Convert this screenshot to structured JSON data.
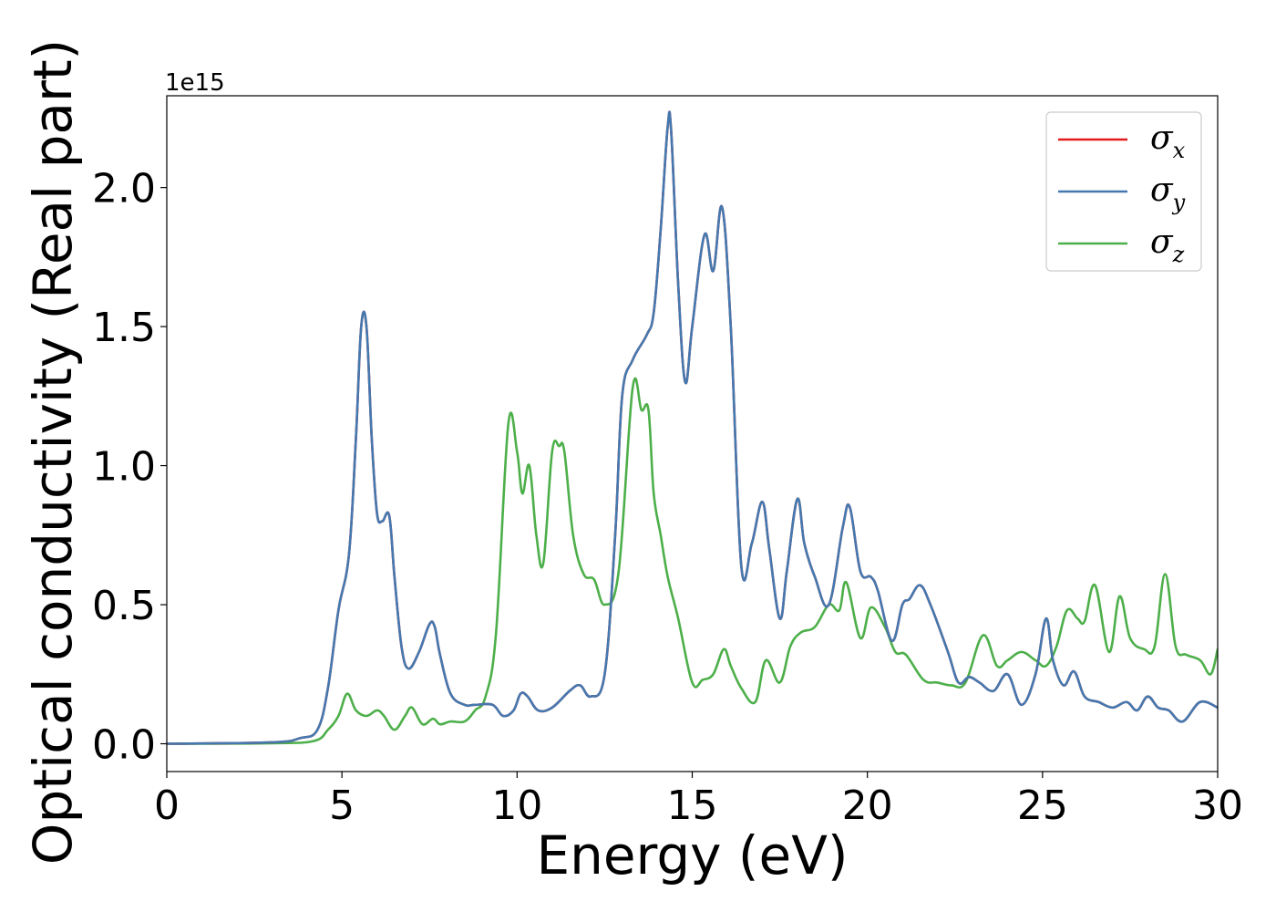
{
  "chart_data": {
    "type": "line",
    "xlabel": "Energy (eV)",
    "ylabel": "Optical conductivity (Real part)",
    "y_offset_text": "1e15",
    "xlim": [
      0,
      30
    ],
    "ylim": [
      -0.1,
      2.33
    ],
    "y_scale_factor": 1000000000000000.0,
    "xticks": [
      0,
      5,
      10,
      15,
      20,
      25,
      30
    ],
    "xtick_labels": [
      "0",
      "5",
      "10",
      "15",
      "20",
      "25",
      "30"
    ],
    "yticks": [
      0.0,
      0.5,
      1.0,
      1.5,
      2.0
    ],
    "ytick_labels": [
      "0.0",
      "0.5",
      "1.0",
      "1.5",
      "2.0"
    ],
    "grid": false,
    "legend_position": "top-right",
    "series": [
      {
        "name": "σx",
        "symbol": "σ",
        "subscript": "x",
        "color": "#e41a1c",
        "x": [
          0,
          3,
          3.8,
          4.3,
          4.6,
          4.9,
          5.2,
          5.4,
          5.55,
          5.7,
          5.85,
          6.0,
          6.15,
          6.35,
          6.5,
          6.7,
          6.9,
          7.2,
          7.5,
          7.65,
          7.8,
          8.1,
          8.5,
          8.8,
          9.3,
          9.6,
          9.9,
          10.1,
          10.3,
          10.6,
          11.0,
          11.5,
          11.8,
          12.1,
          12.5,
          12.8,
          13.0,
          13.3,
          13.7,
          13.9,
          14.1,
          14.3,
          14.4,
          14.6,
          14.8,
          15.0,
          15.35,
          15.6,
          15.85,
          16.1,
          16.4,
          16.7,
          17.0,
          17.2,
          17.5,
          17.7,
          18.0,
          18.2,
          18.5,
          18.9,
          19.3,
          19.5,
          19.8,
          20.1,
          20.3,
          20.7,
          21.0,
          21.2,
          21.5,
          21.8,
          22.3,
          22.6,
          22.9,
          23.2,
          23.6,
          24.0,
          24.4,
          24.8,
          25.1,
          25.3,
          25.6,
          25.9,
          26.2,
          26.6,
          27.0,
          27.4,
          27.7,
          28.0,
          28.3,
          28.6,
          29.0,
          29.5,
          30.0
        ],
        "y": [
          0.0,
          0.005,
          0.02,
          0.05,
          0.2,
          0.48,
          0.68,
          1.1,
          1.5,
          1.5,
          1.1,
          0.83,
          0.8,
          0.82,
          0.6,
          0.35,
          0.27,
          0.33,
          0.43,
          0.42,
          0.32,
          0.18,
          0.14,
          0.14,
          0.14,
          0.1,
          0.12,
          0.18,
          0.17,
          0.12,
          0.13,
          0.19,
          0.21,
          0.17,
          0.25,
          0.75,
          1.25,
          1.38,
          1.47,
          1.55,
          1.85,
          2.22,
          2.2,
          1.65,
          1.3,
          1.5,
          1.83,
          1.7,
          1.93,
          1.5,
          0.64,
          0.72,
          0.87,
          0.7,
          0.45,
          0.62,
          0.88,
          0.72,
          0.6,
          0.5,
          0.78,
          0.85,
          0.62,
          0.6,
          0.55,
          0.37,
          0.5,
          0.52,
          0.57,
          0.5,
          0.33,
          0.22,
          0.24,
          0.22,
          0.19,
          0.25,
          0.14,
          0.25,
          0.45,
          0.3,
          0.21,
          0.26,
          0.17,
          0.15,
          0.13,
          0.15,
          0.12,
          0.17,
          0.13,
          0.12,
          0.08,
          0.15,
          0.13
        ]
      },
      {
        "name": "σy",
        "symbol": "σ",
        "subscript": "y",
        "color": "#4479b0",
        "x": [
          0,
          3,
          3.8,
          4.3,
          4.6,
          4.9,
          5.2,
          5.4,
          5.55,
          5.7,
          5.85,
          6.0,
          6.15,
          6.35,
          6.5,
          6.7,
          6.9,
          7.2,
          7.5,
          7.65,
          7.8,
          8.1,
          8.5,
          8.8,
          9.3,
          9.6,
          9.9,
          10.1,
          10.3,
          10.6,
          11.0,
          11.5,
          11.8,
          12.1,
          12.5,
          12.8,
          13.0,
          13.3,
          13.7,
          13.9,
          14.1,
          14.3,
          14.4,
          14.6,
          14.8,
          15.0,
          15.35,
          15.6,
          15.85,
          16.1,
          16.4,
          16.7,
          17.0,
          17.2,
          17.5,
          17.7,
          18.0,
          18.2,
          18.5,
          18.9,
          19.3,
          19.5,
          19.8,
          20.1,
          20.3,
          20.7,
          21.0,
          21.2,
          21.5,
          21.8,
          22.3,
          22.6,
          22.9,
          23.2,
          23.6,
          24.0,
          24.4,
          24.8,
          25.1,
          25.3,
          25.6,
          25.9,
          26.2,
          26.6,
          27.0,
          27.4,
          27.7,
          28.0,
          28.3,
          28.6,
          29.0,
          29.5,
          30.0
        ],
        "y": [
          0.0,
          0.005,
          0.02,
          0.05,
          0.2,
          0.48,
          0.68,
          1.1,
          1.5,
          1.5,
          1.1,
          0.83,
          0.8,
          0.82,
          0.6,
          0.35,
          0.27,
          0.33,
          0.43,
          0.42,
          0.32,
          0.18,
          0.14,
          0.14,
          0.14,
          0.1,
          0.12,
          0.18,
          0.17,
          0.12,
          0.13,
          0.19,
          0.21,
          0.17,
          0.25,
          0.75,
          1.25,
          1.38,
          1.47,
          1.55,
          1.85,
          2.22,
          2.2,
          1.65,
          1.3,
          1.5,
          1.83,
          1.7,
          1.93,
          1.5,
          0.64,
          0.72,
          0.87,
          0.7,
          0.45,
          0.62,
          0.88,
          0.72,
          0.6,
          0.5,
          0.78,
          0.85,
          0.62,
          0.6,
          0.55,
          0.37,
          0.5,
          0.52,
          0.57,
          0.5,
          0.33,
          0.22,
          0.24,
          0.22,
          0.19,
          0.25,
          0.14,
          0.25,
          0.45,
          0.3,
          0.21,
          0.26,
          0.17,
          0.15,
          0.13,
          0.15,
          0.12,
          0.17,
          0.13,
          0.12,
          0.08,
          0.15,
          0.13
        ]
      },
      {
        "name": "σz",
        "symbol": "σ",
        "subscript": "z",
        "color": "#4daf4a",
        "x": [
          0,
          3,
          4.2,
          4.6,
          4.9,
          5.15,
          5.4,
          5.7,
          6.0,
          6.2,
          6.5,
          6.8,
          7.0,
          7.3,
          7.6,
          7.8,
          8.1,
          8.5,
          8.8,
          9.1,
          9.4,
          9.75,
          10.0,
          10.15,
          10.35,
          10.55,
          10.75,
          11.0,
          11.2,
          11.35,
          11.6,
          11.9,
          12.2,
          12.5,
          12.9,
          13.3,
          13.55,
          13.75,
          13.9,
          14.1,
          14.3,
          14.6,
          15.0,
          15.3,
          15.6,
          15.9,
          16.1,
          16.4,
          16.8,
          17.1,
          17.5,
          17.8,
          18.1,
          18.5,
          18.9,
          19.2,
          19.4,
          19.8,
          20.1,
          20.5,
          20.8,
          21.1,
          21.6,
          22.0,
          22.4,
          22.8,
          23.3,
          23.7,
          24.0,
          24.4,
          24.8,
          25.1,
          25.4,
          25.7,
          26.0,
          26.2,
          26.5,
          26.9,
          27.2,
          27.5,
          27.9,
          28.2,
          28.5,
          28.8,
          29.1,
          29.5,
          29.8,
          30.0
        ],
        "y": [
          0.0,
          0.002,
          0.01,
          0.05,
          0.1,
          0.18,
          0.12,
          0.1,
          0.12,
          0.1,
          0.05,
          0.1,
          0.13,
          0.07,
          0.09,
          0.07,
          0.08,
          0.08,
          0.12,
          0.17,
          0.4,
          1.15,
          1.05,
          0.9,
          1.0,
          0.75,
          0.65,
          1.05,
          1.07,
          1.05,
          0.75,
          0.61,
          0.59,
          0.5,
          0.62,
          1.28,
          1.2,
          1.2,
          0.9,
          0.75,
          0.6,
          0.45,
          0.22,
          0.23,
          0.25,
          0.34,
          0.28,
          0.2,
          0.15,
          0.3,
          0.22,
          0.35,
          0.4,
          0.42,
          0.5,
          0.48,
          0.58,
          0.38,
          0.49,
          0.42,
          0.33,
          0.32,
          0.23,
          0.22,
          0.21,
          0.22,
          0.39,
          0.28,
          0.3,
          0.33,
          0.3,
          0.28,
          0.35,
          0.48,
          0.45,
          0.44,
          0.57,
          0.33,
          0.53,
          0.38,
          0.34,
          0.35,
          0.61,
          0.35,
          0.32,
          0.3,
          0.25,
          0.34
        ]
      }
    ]
  }
}
